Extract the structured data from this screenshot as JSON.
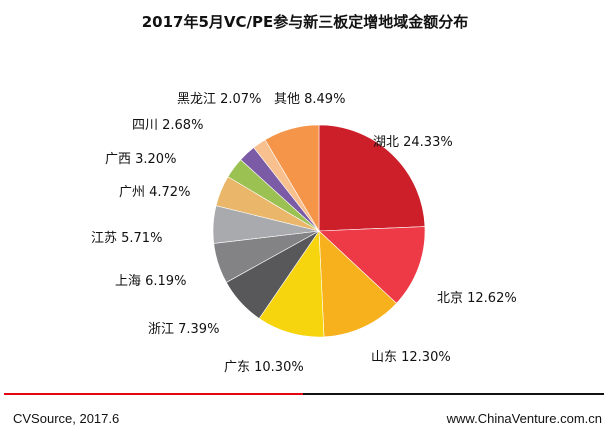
{
  "chart_data": {
    "type": "pie",
    "title": "2017年5月VC/PE参与新三板定增地域金额分布",
    "unit": "%",
    "slices": [
      {
        "label": "湖北",
        "value": 24.33,
        "display": "24.33%",
        "color": "#cc1f2a"
      },
      {
        "label": "北京",
        "value": 12.62,
        "display": "12.62%",
        "color": "#ee3a47"
      },
      {
        "label": "山东",
        "value": 12.3,
        "display": "12.30%",
        "color": "#f7b11c"
      },
      {
        "label": "广东",
        "value": 10.3,
        "display": "10.30%",
        "color": "#f6d40e"
      },
      {
        "label": "浙江",
        "value": 7.39,
        "display": "7.39%",
        "color": "#58585b"
      },
      {
        "label": "上海",
        "value": 6.19,
        "display": "6.19%",
        "color": "#838386"
      },
      {
        "label": "江苏",
        "value": 5.71,
        "display": "5.71%",
        "color": "#a9aaad"
      },
      {
        "label": "广州",
        "value": 4.72,
        "display": "4.72%",
        "color": "#e9b66a"
      },
      {
        "label": "广西",
        "value": 3.2,
        "display": "3.20%",
        "color": "#9bc153"
      },
      {
        "label": "四川",
        "value": 2.68,
        "display": "2.68%",
        "color": "#7b5aa6"
      },
      {
        "label": "黑龙江",
        "value": 2.07,
        "display": "2.07%",
        "color": "#f8c08e"
      },
      {
        "label": "其他",
        "value": 8.49,
        "display": "8.49%",
        "color": "#f5954a"
      }
    ],
    "start": "12 o'clock",
    "direction": "clockwise"
  },
  "footer": {
    "source": "CVSource, 2017.6",
    "website": "www.ChinaVenture.com.cn"
  }
}
